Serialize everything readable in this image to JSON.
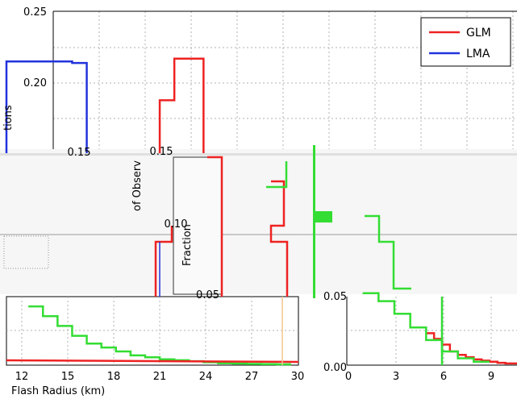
{
  "chart_data": [
    {
      "type": "line",
      "xlabel": "Flash Radius (km)",
      "ylabel": "tions",
      "xlim": [
        10.5,
        30.5
      ],
      "ylim": [
        0.0,
        0.25
      ],
      "xticks": [
        "12",
        "15",
        "18",
        "21",
        "24",
        "27",
        "30"
      ],
      "yticks": [
        "0.20",
        "0.25"
      ],
      "grid": true,
      "legend": {
        "placement": "top-right",
        "entries": [
          "GLM",
          "LMA"
        ]
      },
      "series": [
        {
          "name": "LMA",
          "color": "#2233dd",
          "x": [
            10.5,
            14,
            15,
            16
          ],
          "values": [
            0.215,
            0.215,
            0.214,
            0.214
          ]
        },
        {
          "name": "GLM",
          "color": "#ee2222",
          "x": [
            21,
            22,
            23,
            24
          ],
          "values": [
            0.188,
            0.217,
            0.217,
            0.198
          ]
        },
        {
          "name": "",
          "color": "#33dd33",
          "x": [
            12,
            13,
            14,
            15,
            16,
            17,
            18,
            19,
            20,
            21,
            22,
            23,
            24,
            25,
            26,
            27,
            28,
            29
          ],
          "values": [
            0.03,
            0.025,
            0.02,
            0.015,
            0.011,
            0.009,
            0.007,
            0.005,
            0.004,
            0.003,
            0.0025,
            0.002,
            0.0015,
            0.001,
            0.0008,
            0.0006,
            0.0005,
            0.0004
          ]
        }
      ]
    },
    {
      "type": "line",
      "xlabel": "",
      "ylabel": "Fraction",
      "ylabel_overlap": "of Observ",
      "xlim": [
        0,
        11
      ],
      "ylim": [
        0.0,
        0.15
      ],
      "xticks": [
        "0",
        "3",
        "6",
        "9"
      ],
      "yticks": [
        "0.00",
        "0.05",
        "0.10",
        "0.15"
      ],
      "grid": true,
      "series": [
        {
          "name": "",
          "color": "#ee2222",
          "x": [
            5,
            5.5,
            6,
            6.5,
            7,
            7.5,
            8,
            8.5,
            9,
            9.5,
            10,
            11
          ],
          "values": [
            0.028,
            0.023,
            0.018,
            0.012,
            0.009,
            0.007,
            0.005,
            0.004,
            0.003,
            0.002,
            0.0015,
            0.001
          ]
        },
        {
          "name": "",
          "color": "#33dd33",
          "x": [
            1,
            2,
            3,
            4,
            5,
            6,
            7,
            8
          ],
          "values": [
            0.063,
            0.056,
            0.045,
            0.033,
            0.022,
            0.012,
            0.006,
            0.003
          ]
        }
      ]
    }
  ]
}
